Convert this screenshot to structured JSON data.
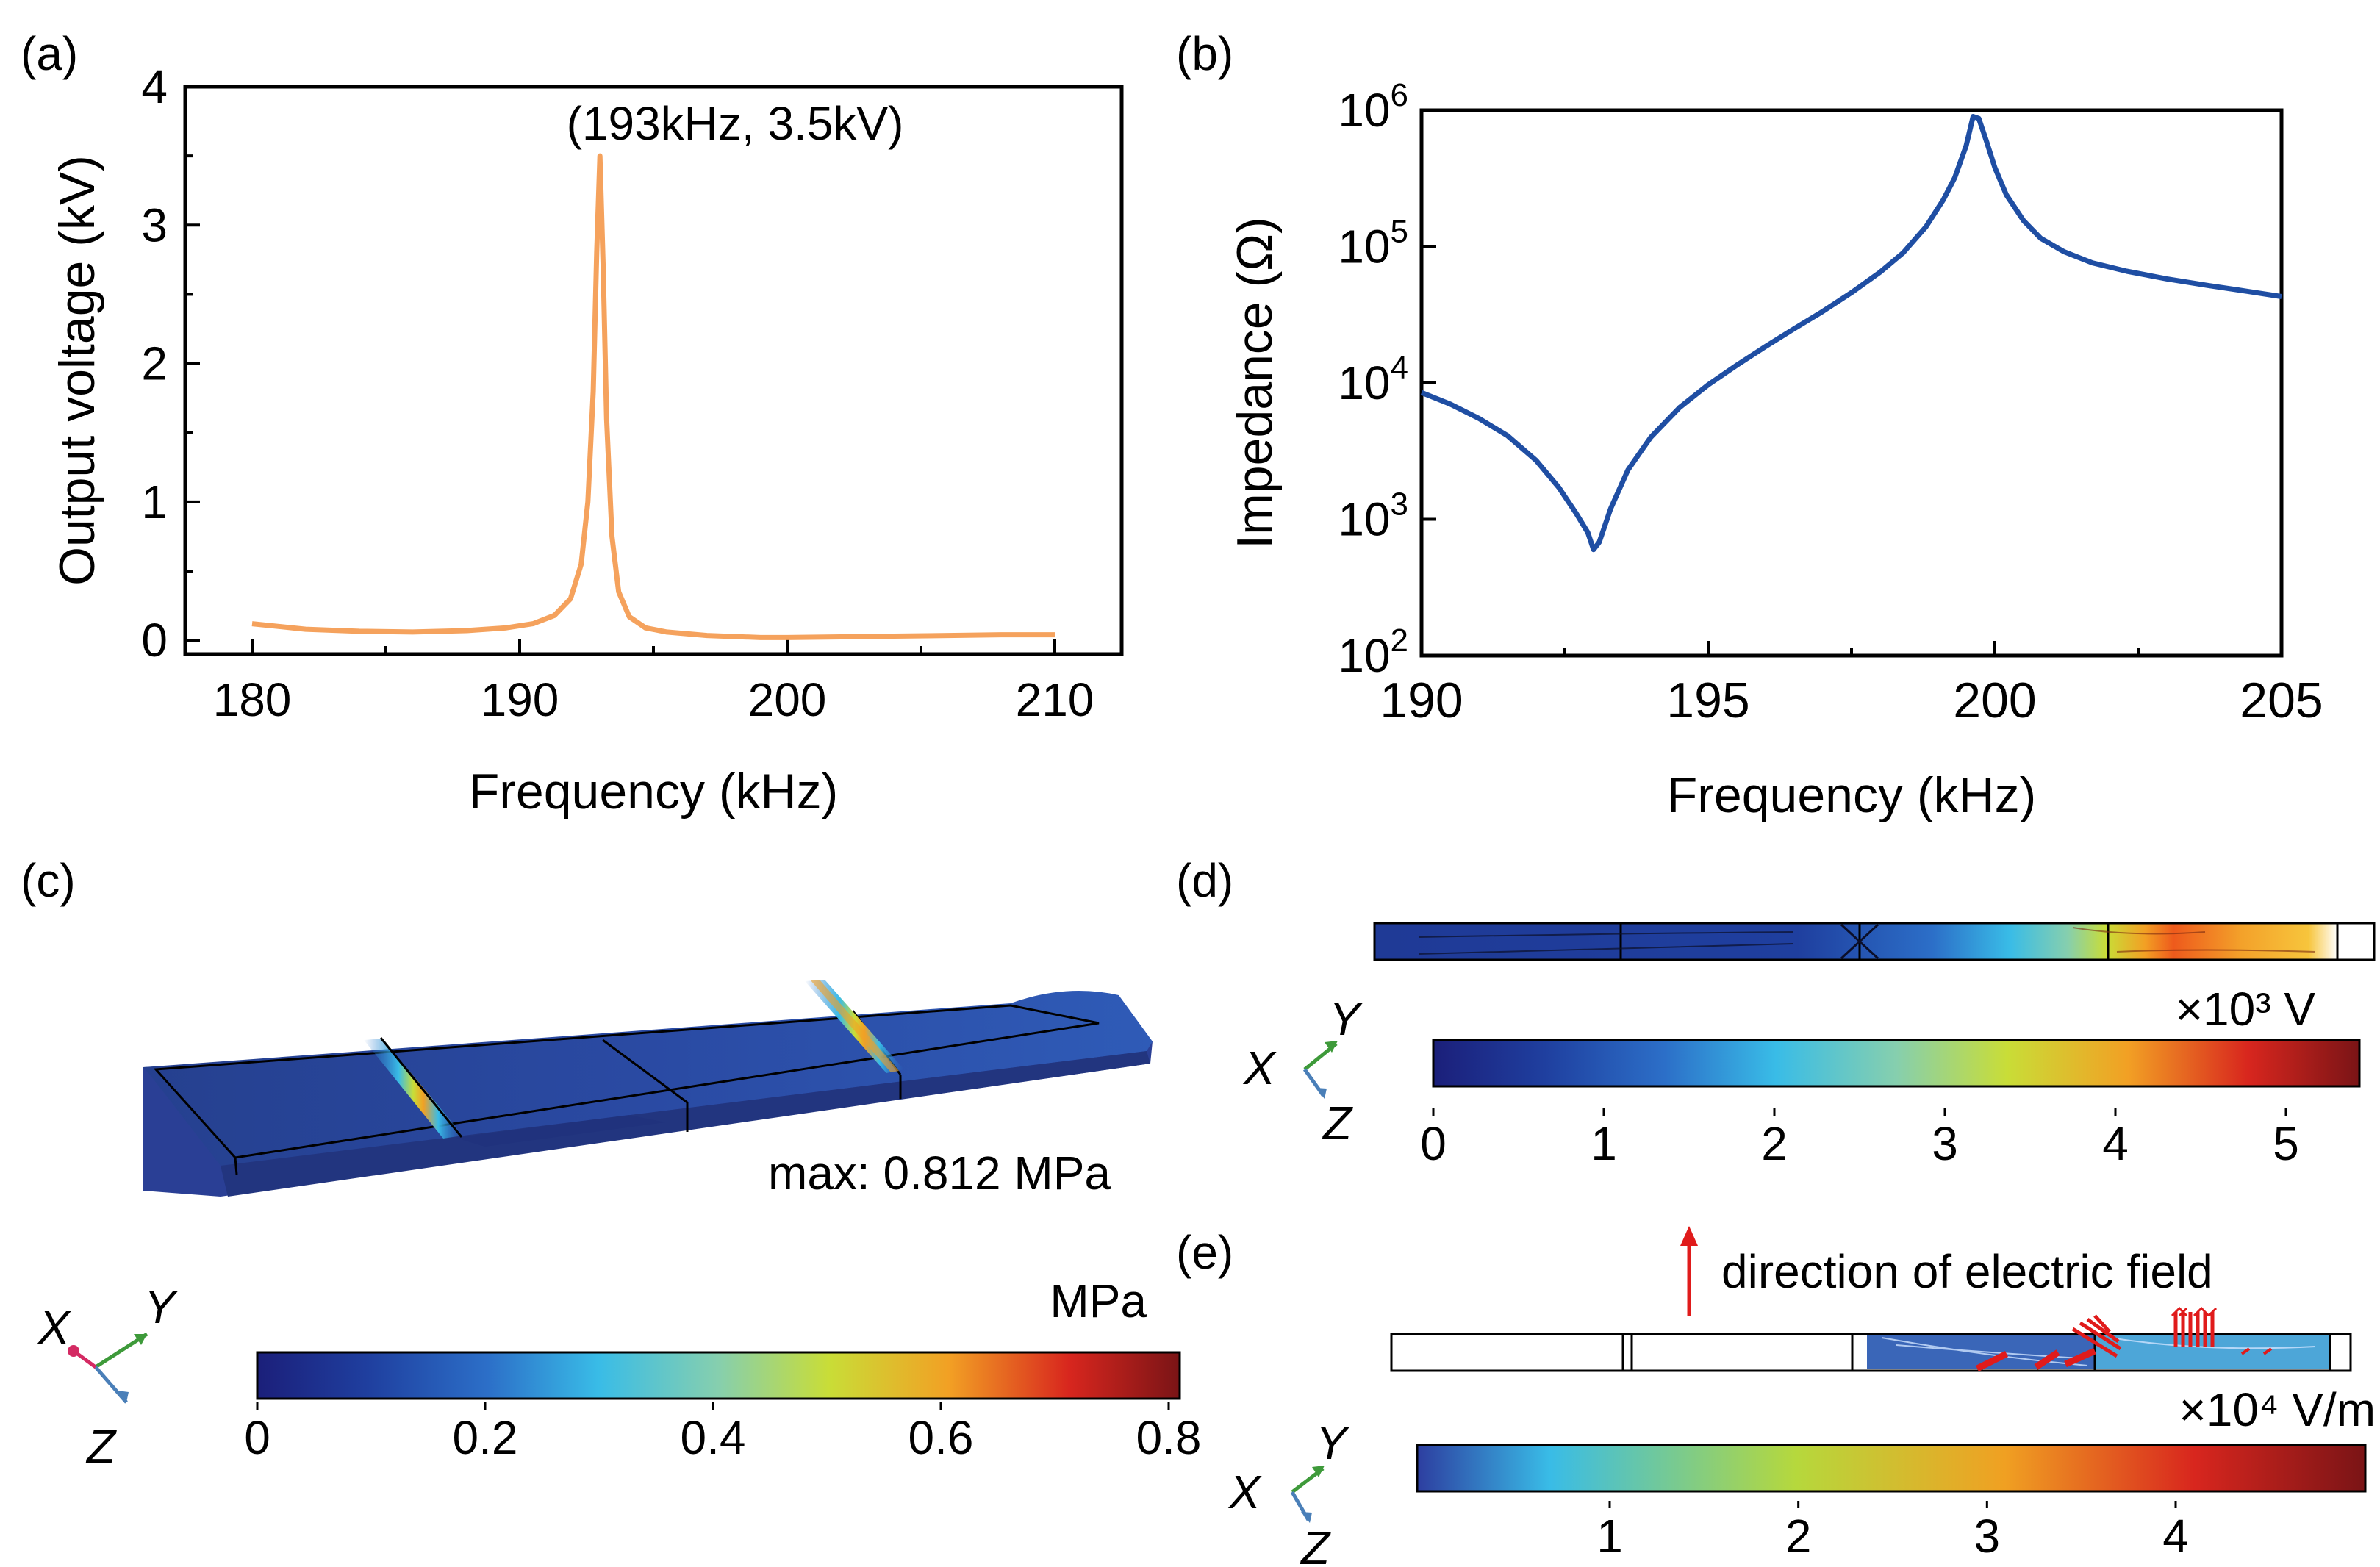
{
  "colors": {
    "panel_a_line": "#F5A25D",
    "panel_b_line": "#1F4EA3",
    "jet": [
      "#1b1f7a",
      "#1f3f9f",
      "#2c6fc8",
      "#39bce7",
      "#86cfae",
      "#c9dd37",
      "#f2a024",
      "#d8261e",
      "#7a1416"
    ],
    "arrow": "#e01b1b",
    "axis_green": "#3e9a3a",
    "axis_blue": "#4a7fb8",
    "axis_red": "#d42a63"
  },
  "panels": {
    "a": {
      "label": "(a)",
      "annotation": "(193kHz, 3.5kV)",
      "chart_data": {
        "type": "line",
        "title": "",
        "xlabel": "Frequency (kHz)",
        "ylabel": "Output voltage (kV)",
        "xlim": [
          177.5,
          212.5
        ],
        "ylim": [
          -0.1,
          4.0
        ],
        "xticks": [
          180,
          190,
          200,
          210
        ],
        "yticks": [
          0,
          1,
          2,
          3,
          4
        ],
        "series": [
          {
            "name": "Output voltage",
            "x": [
              180,
              182,
              184,
              186,
              188,
              189.5,
              190.5,
              191.3,
              191.9,
              192.3,
              192.55,
              192.75,
              192.88,
              193.0,
              193.12,
              193.25,
              193.45,
              193.7,
              194.1,
              194.7,
              195.5,
              197,
              199,
              200,
              202,
              204,
              206,
              208,
              210
            ],
            "y": [
              0.12,
              0.08,
              0.065,
              0.06,
              0.07,
              0.09,
              0.12,
              0.18,
              0.3,
              0.55,
              1.0,
              1.8,
              2.8,
              3.5,
              2.7,
              1.6,
              0.75,
              0.35,
              0.17,
              0.09,
              0.06,
              0.035,
              0.02,
              0.02,
              0.025,
              0.03,
              0.035,
              0.04,
              0.04
            ]
          }
        ]
      }
    },
    "b": {
      "label": "(b)",
      "chart_data": {
        "type": "line",
        "title": "",
        "xlabel": "Frequency (kHz)",
        "ylabel": "Impedance (Ω)",
        "xscale": "linear",
        "yscale": "log",
        "xlim": [
          190,
          205
        ],
        "ylim": [
          100,
          1000000
        ],
        "xticks": [
          190,
          195,
          200,
          205
        ],
        "ytick_labels": [
          {
            "base": "10",
            "exp": "2",
            "value": 100
          },
          {
            "base": "10",
            "exp": "3",
            "value": 1000
          },
          {
            "base": "10",
            "exp": "4",
            "value": 10000
          },
          {
            "base": "10",
            "exp": "5",
            "value": 100000
          },
          {
            "base": "10",
            "exp": "6",
            "value": 1000000
          }
        ],
        "series": [
          {
            "name": "Impedance",
            "x": [
              190,
              190.5,
              191,
              191.5,
              192,
              192.4,
              192.7,
              192.9,
              193.0,
              193.1,
              193.3,
              193.6,
              194,
              194.5,
              195,
              195.5,
              196,
              196.5,
              197,
              197.5,
              198,
              198.4,
              198.8,
              199.1,
              199.3,
              199.5,
              199.62,
              199.72,
              199.85,
              200.0,
              200.2,
              200.5,
              200.8,
              201.2,
              201.7,
              202.3,
              203,
              203.7,
              204.4,
              205
            ],
            "y": [
              8500,
              7000,
              5500,
              4100,
              2700,
              1700,
              1100,
              800,
              600,
              680,
              1200,
              2300,
              4000,
              6600,
              9700,
              13500,
              18500,
              25000,
              33500,
              46000,
              65000,
              90000,
              140000,
              220000,
              320000,
              550000,
              900000,
              870000,
              600000,
              380000,
              240000,
              155000,
              115000,
              92000,
              76000,
              66000,
              58000,
              52000,
              47000,
              43000
            ]
          }
        ]
      }
    },
    "c": {
      "label": "(c)",
      "max_text": "max: 0.812 MPa",
      "unit": "MPa",
      "colorbar_ticks": [
        "0",
        "0.2",
        "0.4",
        "0.6",
        "0.8"
      ],
      "axes": {
        "x": "X",
        "y": "Y",
        "z": "Z"
      }
    },
    "d": {
      "label": "(d)",
      "unit": "×10³ V",
      "colorbar_ticks": [
        "0",
        "1",
        "2",
        "3",
        "4",
        "5"
      ],
      "axes": {
        "x": "X",
        "y": "Y",
        "z": "Z"
      }
    },
    "e": {
      "label": "(e)",
      "arrow_text": "direction of electric field",
      "unit": "×10⁴ V/m",
      "colorbar_ticks": [
        "1",
        "2",
        "3",
        "4"
      ],
      "axes": {
        "x": "X",
        "y": "Y",
        "z": "Z"
      }
    }
  }
}
